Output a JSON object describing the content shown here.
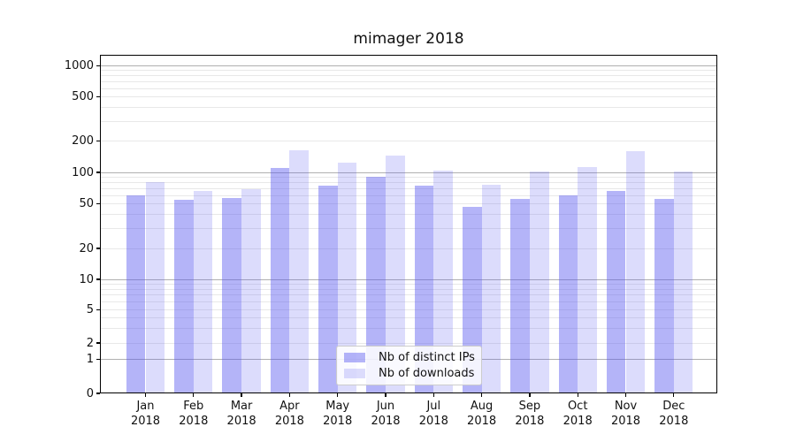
{
  "chart_data": {
    "type": "bar",
    "title": "mimager 2018",
    "categories": [
      "Jan",
      "Feb",
      "Mar",
      "Apr",
      "May",
      "Jun",
      "Jul",
      "Aug",
      "Sep",
      "Oct",
      "Nov",
      "Dec"
    ],
    "category_year": "2018",
    "series": [
      {
        "name": "Nb of distinct IPs",
        "color": "rgba(88,88,240,0.45)",
        "values": [
          60,
          55,
          57,
          110,
          75,
          90,
          74,
          47,
          56,
          60,
          67,
          56
        ]
      },
      {
        "name": "Nb of downloads",
        "color": "rgba(88,88,240,0.21)",
        "values": [
          80,
          67,
          69,
          165,
          125,
          145,
          103,
          76,
          101,
          112,
          160,
          102
        ]
      }
    ],
    "y_ticks": [
      0,
      1,
      2,
      5,
      10,
      20,
      50,
      100,
      200,
      500,
      1000
    ],
    "y_scale": "symlog",
    "ylim": [
      0,
      1300
    ],
    "xlabel": "",
    "ylabel": "",
    "grid": true,
    "legend": {
      "position": "lower-center",
      "items": [
        "Nb of distinct IPs",
        "Nb of downloads"
      ]
    }
  },
  "colors": {
    "major_grid": "#b0b0b0",
    "minor_grid": "#e8e8e8",
    "axis": "#000000",
    "text": "#111111",
    "legend_border": "#cccccc"
  }
}
